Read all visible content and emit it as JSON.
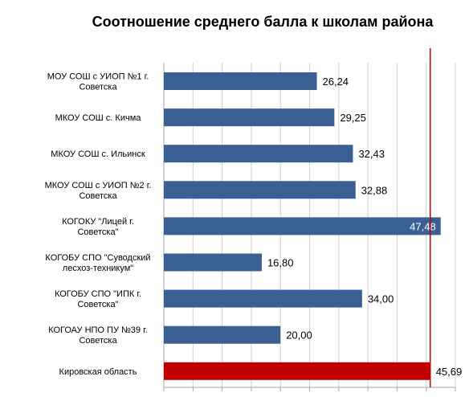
{
  "chart_data": {
    "type": "bar",
    "orientation": "horizontal",
    "title": "Соотношение среднего балла к школам района",
    "categories": [
      "МОУ СОШ с УИОП №1 г. Советска",
      "МКОУ СОШ с. Кичма",
      "МКОУ СОШ с. Ильинск",
      "МКОУ СОШ с УИОП №2 г. Советска",
      "КОГОКУ \"Лицей г. Советска\"",
      "КОГОБУ СПО \"Суводский лесхоз-техникум\"",
      "КОГОБУ СПО \"ИПК г. Советска\"",
      "КОГОАУ НПО ПУ №39 г. Советска",
      "Кировская область"
    ],
    "values": [
      26.24,
      29.25,
      32.43,
      32.88,
      47.48,
      16.8,
      34.0,
      20.0,
      45.69
    ],
    "value_labels": [
      "26,24",
      "29,25",
      "32,43",
      "32,88",
      "47,48",
      "16,80",
      "34,00",
      "20,00",
      "45,69"
    ],
    "bar_colors": [
      "#3a5f93",
      "#3a5f93",
      "#3a5f93",
      "#3a5f93",
      "#3a5f93",
      "#3a5f93",
      "#3a5f93",
      "#3a5f93",
      "#c00000"
    ],
    "xlim": [
      0,
      50
    ],
    "x_grid_step": 5,
    "grid": true,
    "reference_line": {
      "value": 45.69,
      "color": "#c00000"
    },
    "legend": "none"
  }
}
